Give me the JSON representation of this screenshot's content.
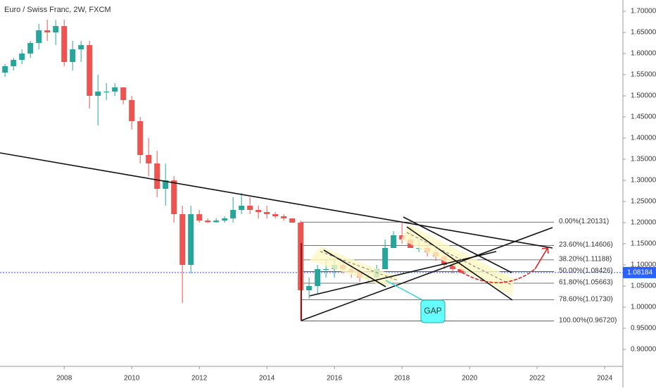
{
  "chart_data": {
    "type": "candlestick",
    "title": "Euro / Swiss Franc, 2W, FXCM",
    "x": [
      2006.25,
      2006.5,
      2006.75,
      2007.0,
      2007.25,
      2007.5,
      2007.75,
      2008.0,
      2008.25,
      2008.5,
      2008.75,
      2009.0,
      2009.25,
      2009.5,
      2009.75,
      2010.0,
      2010.25,
      2010.5,
      2010.75,
      2011.0,
      2011.25,
      2011.5,
      2011.75,
      2012.0,
      2012.25,
      2012.5,
      2012.75,
      2013.0,
      2013.25,
      2013.5,
      2013.75,
      2014.0,
      2014.25,
      2014.5,
      2014.75,
      2015.0,
      2015.25,
      2015.5,
      2015.75,
      2016.0,
      2016.25,
      2016.5,
      2016.75,
      2017.0,
      2017.25,
      2017.5,
      2017.75,
      2018.0,
      2018.25,
      2018.5,
      2018.75,
      2019.0,
      2019.25,
      2019.5,
      2019.75
    ],
    "open": [
      1.555,
      1.57,
      1.585,
      1.6,
      1.625,
      1.655,
      1.65,
      1.665,
      1.58,
      1.61,
      1.62,
      1.5,
      1.51,
      1.51,
      1.52,
      1.49,
      1.44,
      1.36,
      1.34,
      1.28,
      1.3,
      1.22,
      1.1,
      1.22,
      1.205,
      1.201,
      1.205,
      1.21,
      1.23,
      1.24,
      1.23,
      1.225,
      1.22,
      1.215,
      1.21,
      1.2,
      1.04,
      1.05,
      1.09,
      1.09,
      1.1,
      1.09,
      1.085,
      1.07,
      1.07,
      1.09,
      1.14,
      1.17,
      1.16,
      1.14,
      1.14,
      1.13,
      1.12,
      1.1,
      1.09
    ],
    "high": [
      1.575,
      1.59,
      1.61,
      1.63,
      1.67,
      1.68,
      1.68,
      1.68,
      1.63,
      1.63,
      1.63,
      1.55,
      1.53,
      1.53,
      1.52,
      1.5,
      1.45,
      1.4,
      1.37,
      1.34,
      1.31,
      1.24,
      1.24,
      1.23,
      1.21,
      1.21,
      1.215,
      1.26,
      1.27,
      1.26,
      1.24,
      1.24,
      1.225,
      1.22,
      1.21,
      1.205,
      1.07,
      1.1,
      1.11,
      1.12,
      1.11,
      1.1,
      1.09,
      1.08,
      1.1,
      1.16,
      1.18,
      1.2,
      1.19,
      1.16,
      1.15,
      1.14,
      1.13,
      1.12,
      1.1
    ],
    "low": [
      1.545,
      1.56,
      1.575,
      1.59,
      1.61,
      1.63,
      1.62,
      1.57,
      1.56,
      1.58,
      1.47,
      1.43,
      1.49,
      1.5,
      1.48,
      1.42,
      1.34,
      1.31,
      1.26,
      1.24,
      1.2,
      1.01,
      1.08,
      1.2,
      1.199,
      1.2,
      1.2,
      1.2,
      1.22,
      1.22,
      1.21,
      1.21,
      1.21,
      1.205,
      1.2,
      0.97,
      1.02,
      1.03,
      1.07,
      1.07,
      1.08,
      1.07,
      1.06,
      1.06,
      1.06,
      1.09,
      1.14,
      1.15,
      1.14,
      1.13,
      1.12,
      1.11,
      1.09,
      1.08,
      1.08
    ],
    "close": [
      1.57,
      1.585,
      1.6,
      1.625,
      1.655,
      1.65,
      1.665,
      1.58,
      1.61,
      1.62,
      1.5,
      1.51,
      1.51,
      1.52,
      1.49,
      1.44,
      1.36,
      1.34,
      1.28,
      1.3,
      1.22,
      1.1,
      1.22,
      1.205,
      1.201,
      1.205,
      1.21,
      1.23,
      1.24,
      1.23,
      1.225,
      1.22,
      1.215,
      1.21,
      1.2,
      1.04,
      1.05,
      1.09,
      1.09,
      1.1,
      1.09,
      1.085,
      1.07,
      1.07,
      1.09,
      1.14,
      1.17,
      1.16,
      1.14,
      1.14,
      1.13,
      1.12,
      1.1,
      1.09,
      1.082
    ],
    "up_color": "#26a69a",
    "down_color": "#ef5350",
    "xlim": [
      2006.1,
      2024.54
    ],
    "xticks": [
      2008,
      2010,
      2012,
      2014,
      2016,
      2018,
      2020,
      2022,
      2024
    ],
    "ylim": [
      0.86,
      1.7267
    ],
    "yticks": [
      {
        "value": 0.9,
        "label": "0.90000"
      },
      {
        "value": 0.95,
        "label": "0.95000"
      },
      {
        "value": 1.0,
        "label": "1.00000"
      },
      {
        "value": 1.05,
        "label": "1.05000"
      },
      {
        "value": 1.1,
        "label": "1.10000"
      },
      {
        "value": 1.15,
        "label": "1.15000"
      },
      {
        "value": 1.2,
        "label": "1.20000"
      },
      {
        "value": 1.25,
        "label": "1.25000"
      },
      {
        "value": 1.3,
        "label": "1.30000"
      },
      {
        "value": 1.35,
        "label": "1.35000"
      },
      {
        "value": 1.4,
        "label": "1.40000"
      },
      {
        "value": 1.45,
        "label": "1.45000"
      },
      {
        "value": 1.5,
        "label": "1.50000"
      },
      {
        "value": 1.55,
        "label": "1.55000"
      },
      {
        "value": 1.6,
        "label": "1.60000"
      },
      {
        "value": 1.65,
        "label": "1.65000"
      },
      {
        "value": 1.7,
        "label": "1.70000"
      }
    ],
    "last_price": {
      "value": 1.08184,
      "label": "1.08184"
    },
    "fib_levels": [
      {
        "value": 1.20131,
        "label": "0.00%(1.20131)"
      },
      {
        "value": 1.14606,
        "label": "23.60%(1.14606)"
      },
      {
        "value": 1.11188,
        "label": "38.20%(1.11188)"
      },
      {
        "value": 1.08426,
        "label": "50.00%(1.08426)"
      },
      {
        "value": 1.05663,
        "label": "61.80%(1.05663)"
      },
      {
        "value": 1.0173,
        "label": "78.60%(1.01730)"
      },
      {
        "value": 0.9672,
        "label": "100.00%(0.96720)"
      }
    ],
    "annotation": "GAP"
  }
}
